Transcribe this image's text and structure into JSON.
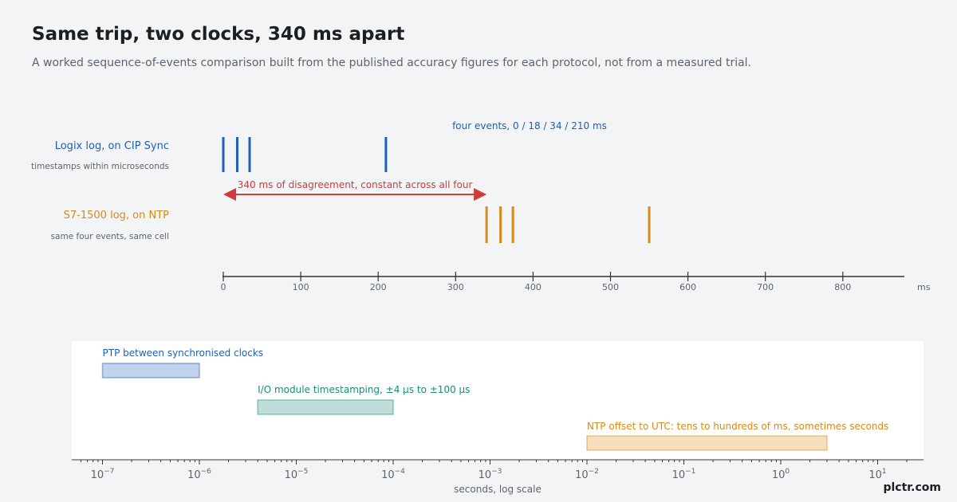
{
  "header": {
    "title": "Same trip, two clocks, 340 ms apart",
    "subtitle": "A worked sequence-of-events comparison built from the published accuracy figures for each protocol, not from a measured trial."
  },
  "brand": "plctr.com",
  "colors": {
    "blue": "#1f5fb8",
    "orange": "#d98a17",
    "red": "#d33b3b",
    "teal": "#1a8a7a",
    "axis": "#333333",
    "muted": "#5b6470"
  },
  "chart_data": [
    {
      "type": "timeline",
      "x_unit": "ms",
      "xlim": [
        0,
        880
      ],
      "ticks": [
        0,
        100,
        200,
        300,
        400,
        500,
        600,
        700,
        800
      ],
      "tick_labels": [
        "0",
        "100",
        "200",
        "300",
        "400",
        "500",
        "600",
        "700",
        "800"
      ],
      "series": [
        {
          "name": "Logix log, on CIP Sync",
          "note": "timestamps within microseconds",
          "color": "#1f5fb8",
          "events_ms": [
            0,
            18,
            34,
            210
          ]
        },
        {
          "name": "S7-1500 log, on NTP",
          "note": "same four events, same cell",
          "color": "#d98a17",
          "events_ms": [
            340,
            358,
            374,
            550
          ]
        }
      ],
      "annotations": {
        "events_label": "four events, 0 / 18 / 34 / 210 ms",
        "offset_label": "340 ms of disagreement, constant across all four",
        "offset_from_ms": 0,
        "offset_to_ms": 340
      }
    },
    {
      "type": "range",
      "x_scale": "log",
      "xlabel": "seconds, log scale",
      "xlim_exp": [
        -7.3,
        1.45
      ],
      "tick_exponents": [
        -7,
        -6,
        -5,
        -4,
        -3,
        -2,
        -1,
        0,
        1
      ],
      "tick_labels": [
        "10−7",
        "10−6",
        "10−5",
        "10−4",
        "10−3",
        "10−2",
        "10−1",
        "100",
        "101"
      ],
      "ranges": [
        {
          "label": "PTP between synchronised clocks",
          "from_s": 1e-07,
          "to_s": 1e-06,
          "color": "#1f5fb8"
        },
        {
          "label": "I/O module timestamping, ±4 μs to ±100 μs",
          "from_s": 4e-06,
          "to_s": 0.0001,
          "color": "#1a8a7a"
        },
        {
          "label": "NTP offset to UTC: tens to hundreds of ms, sometimes seconds",
          "from_s": 0.01,
          "to_s": 3,
          "color": "#d98a17"
        }
      ]
    }
  ]
}
